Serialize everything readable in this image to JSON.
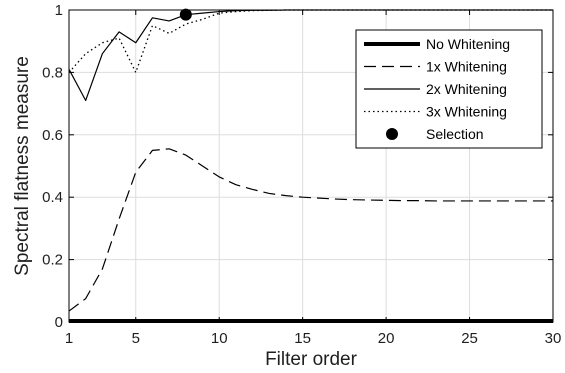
{
  "chart_data": {
    "type": "line",
    "title": "",
    "xlabel": "Filter order",
    "ylabel": "Spectral flatness measure",
    "xlim": [
      1,
      30
    ],
    "ylim": [
      0,
      1
    ],
    "xticks": [
      1,
      5,
      10,
      15,
      20,
      25,
      30
    ],
    "yticks": [
      0,
      0.2,
      0.4,
      0.6,
      0.8,
      1
    ],
    "xtick_labels": [
      "1",
      "5",
      "10",
      "15",
      "20",
      "25",
      "30"
    ],
    "ytick_labels": [
      "0",
      "0.2",
      "0.4",
      "0.6",
      "0.8",
      "1"
    ],
    "grid": true,
    "legend_position": "top-right",
    "x": [
      1,
      2,
      3,
      4,
      5,
      6,
      7,
      8,
      9,
      10,
      11,
      12,
      13,
      14,
      15,
      16,
      17,
      18,
      19,
      20,
      21,
      22,
      23,
      24,
      25,
      26,
      27,
      28,
      29,
      30
    ],
    "series": [
      {
        "name": "No Whitening",
        "style": "thick-solid",
        "color": "#000000",
        "values": [
          0.003,
          0.003,
          0.003,
          0.003,
          0.003,
          0.003,
          0.003,
          0.003,
          0.003,
          0.003,
          0.003,
          0.003,
          0.003,
          0.003,
          0.003,
          0.003,
          0.003,
          0.003,
          0.003,
          0.003,
          0.003,
          0.003,
          0.003,
          0.003,
          0.003,
          0.003,
          0.003,
          0.003,
          0.003,
          0.003
        ]
      },
      {
        "name": "1x Whitening",
        "style": "dashed",
        "color": "#000000",
        "values": [
          0.035,
          0.075,
          0.17,
          0.33,
          0.48,
          0.55,
          0.555,
          0.535,
          0.5,
          0.465,
          0.44,
          0.425,
          0.412,
          0.405,
          0.4,
          0.397,
          0.394,
          0.392,
          0.391,
          0.39,
          0.389,
          0.389,
          0.388,
          0.388,
          0.388,
          0.388,
          0.388,
          0.388,
          0.388,
          0.388
        ]
      },
      {
        "name": "2x Whitening",
        "style": "solid",
        "color": "#000000",
        "values": [
          0.81,
          0.71,
          0.86,
          0.93,
          0.895,
          0.975,
          0.965,
          0.985,
          0.99,
          0.995,
          0.998,
          0.999,
          0.999,
          1.0,
          1.0,
          1.0,
          1.0,
          1.0,
          1.0,
          1.0,
          1.0,
          1.0,
          1.0,
          1.0,
          1.0,
          1.0,
          1.0,
          1.0,
          1.0,
          1.0
        ]
      },
      {
        "name": "3x Whitening",
        "style": "dotted",
        "color": "#000000",
        "values": [
          0.8,
          0.86,
          0.895,
          0.91,
          0.8,
          0.95,
          0.925,
          0.955,
          0.97,
          0.99,
          0.995,
          0.998,
          0.999,
          1.0,
          1.0,
          1.0,
          1.0,
          1.0,
          1.0,
          1.0,
          1.0,
          1.0,
          1.0,
          1.0,
          1.0,
          1.0,
          1.0,
          1.0,
          1.0,
          1.0
        ]
      }
    ],
    "markers": [
      {
        "name": "Selection",
        "x": 8,
        "y": 0.985,
        "color": "#000000"
      }
    ]
  }
}
